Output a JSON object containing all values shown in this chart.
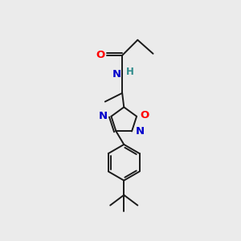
{
  "background_color": "#ebebeb",
  "bond_color": "#1a1a1a",
  "atom_colors": {
    "O": "#ff0000",
    "N": "#0000cc",
    "H": "#2e8b8b"
  },
  "figsize": [
    3.0,
    3.0
  ],
  "dpi": 100,
  "lw": 1.4,
  "fs": 8.5
}
